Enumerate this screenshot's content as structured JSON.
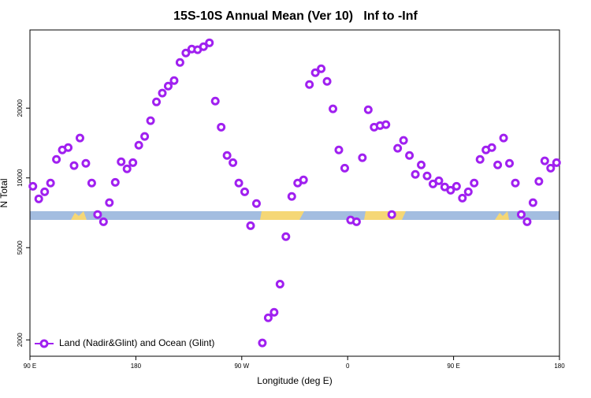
{
  "chart_data": {
    "type": "scatter",
    "title": "15S-10S Annual Mean (Ver 10)   Inf to -Inf",
    "x_label": "Longitude (deg E)",
    "y_label": "N Total",
    "log_y": true,
    "legend": "bottom-left",
    "xlim": [
      90,
      540
    ],
    "ylim": [
      1700,
      43500
    ],
    "xticks": [
      {
        "value": 90,
        "label": "90 E"
      },
      {
        "value": 180,
        "label": "180"
      },
      {
        "value": 270,
        "label": "90 W"
      },
      {
        "value": 360,
        "label": "0"
      },
      {
        "value": 450,
        "label": "90 E"
      },
      {
        "value": 540,
        "label": "180"
      }
    ],
    "yticks": [
      2000,
      5000,
      10000,
      20000
    ],
    "x": [
      92.5,
      97.5,
      102.5,
      107.5,
      112.5,
      117.5,
      122.5,
      127.5,
      132.5,
      137.5,
      142.5,
      147.5,
      152.5,
      157.5,
      162.5,
      167.5,
      172.5,
      177.5,
      182.5,
      187.5,
      192.5,
      197.5,
      202.5,
      207.5,
      212.5,
      217.5,
      222.5,
      227.5,
      232.5,
      237.5,
      242.5,
      247.5,
      252.5,
      257.5,
      262.5,
      267.5,
      272.5,
      277.5,
      282.5,
      287.5,
      292.5,
      297.5,
      302.5,
      307.5,
      312.5,
      317.5,
      322.5,
      327.5,
      332.5,
      337.5,
      342.5,
      347.5,
      352.5,
      357.5,
      362.5,
      367.5,
      372.5,
      377.5,
      382.5,
      387.5,
      392.5,
      397.5,
      402.5,
      407.5,
      412.5,
      417.5,
      422.5,
      427.5,
      432.5,
      437.5,
      442.5,
      447.5,
      452.5,
      457.5,
      462.5,
      467.5,
      472.5,
      477.5,
      482.5,
      487.5,
      492.5,
      497.5,
      502.5,
      507.5,
      512.5,
      517.5,
      522.5,
      527.5,
      532.5,
      537.5
    ],
    "series": [
      {
        "name": "Land (Nadir&Glint) and Ocean (Glint)",
        "color": "#a020f0",
        "values": [
          9200,
          8120,
          8710,
          9500,
          12020,
          13200,
          13520,
          11300,
          14860,
          11560,
          9500,
          6950,
          6470,
          7820,
          9570,
          11740,
          10940,
          11640,
          13840,
          15100,
          17660,
          21280,
          23220,
          24900,
          26300,
          31500,
          34600,
          35980,
          35720,
          36820,
          38280,
          21460,
          16560,
          12500,
          11640,
          9500,
          8710,
          6220,
          7750,
          1940,
          2490,
          2630,
          3480,
          5580,
          8320,
          9500,
          9800,
          25300,
          28440,
          29580,
          26100,
          19860,
          13200,
          11020,
          6580,
          6470,
          12220,
          19680,
          16560,
          16820,
          16980,
          6950,
          13420,
          14520,
          12500,
          10360,
          11380,
          10200,
          9420,
          9720,
          9140,
          8850,
          9200,
          8180,
          8710,
          9500,
          12020,
          13200,
          13520,
          11380,
          14860,
          11560,
          9500,
          6950,
          6470,
          7820,
          9660,
          11840,
          11020,
          11640
        ]
      }
    ]
  }
}
